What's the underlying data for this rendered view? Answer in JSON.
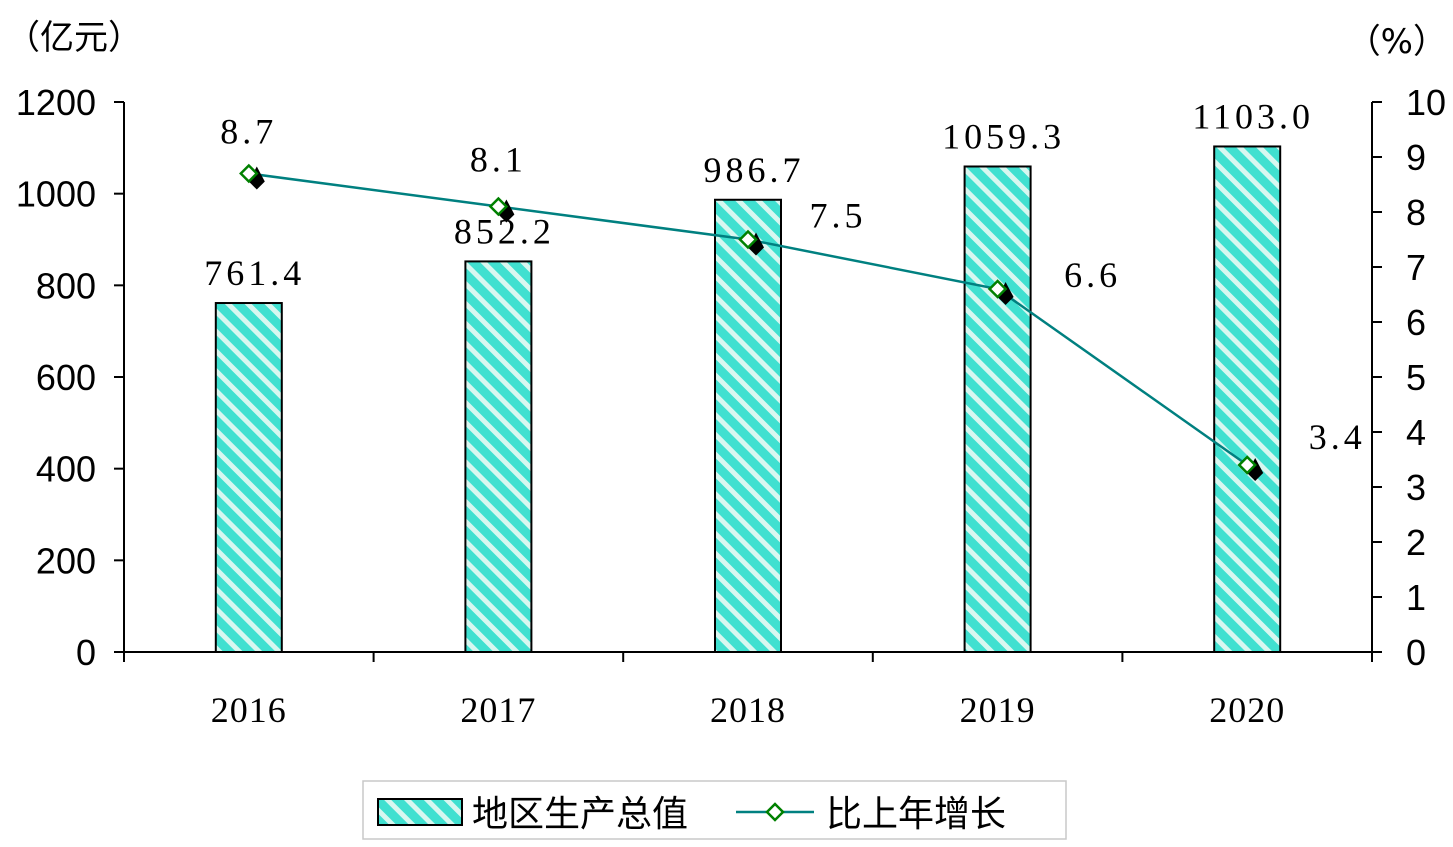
{
  "chart_data": {
    "type": "bar",
    "categories": [
      "2016",
      "2017",
      "2018",
      "2019",
      "2020"
    ],
    "series": [
      {
        "name": "地区生产总值",
        "type": "bar",
        "axis": "left",
        "values": [
          761.4,
          852.2,
          986.7,
          1059.3,
          1103.0
        ],
        "labels": [
          "761.4",
          "852.2",
          "986.7",
          "1059.3",
          "1103.0"
        ],
        "color": "#40e0d0"
      },
      {
        "name": "比上年增长",
        "type": "line",
        "axis": "right",
        "values": [
          8.7,
          8.1,
          7.5,
          6.6,
          3.4
        ],
        "labels": [
          "8.7",
          "8.1",
          "7.5",
          "6.6",
          "3.4"
        ],
        "color": "#008080",
        "marker_color": "#008000"
      }
    ],
    "y_left": {
      "unit": "（亿元）",
      "ylim": [
        0,
        1200
      ],
      "ticks": [
        "0",
        "200",
        "400",
        "600",
        "800",
        "1000",
        "1200"
      ]
    },
    "y_right": {
      "unit": "（%）",
      "ylim": [
        0,
        10
      ],
      "ticks": [
        "0",
        "1",
        "2",
        "3",
        "4",
        "5",
        "6",
        "7",
        "8",
        "9",
        "10"
      ]
    },
    "grid": false,
    "legend_position": "bottom"
  }
}
